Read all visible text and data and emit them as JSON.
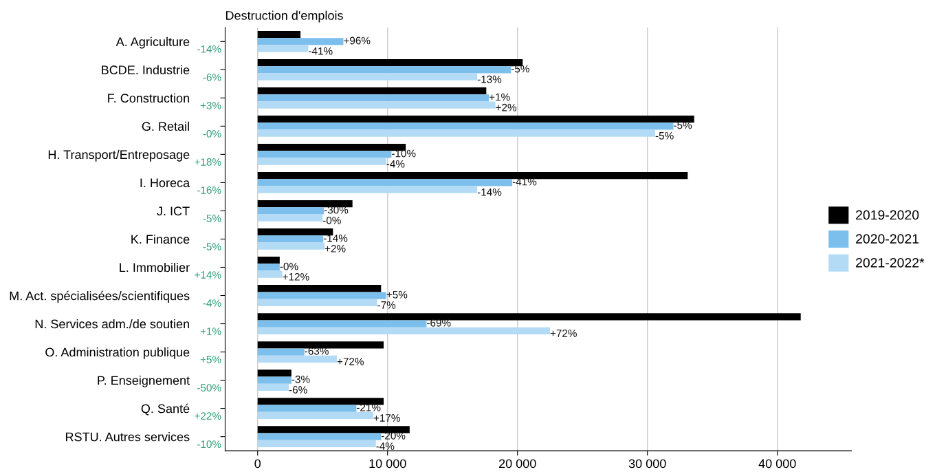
{
  "chart_data": {
    "type": "bar",
    "orientation": "horizontal",
    "title": "Destruction d'emplois",
    "categories": [
      "A. Agriculture",
      "BCDE. Industrie",
      "F. Construction",
      "G. Retail",
      "H. Transport/Entreposage",
      "I. Horeca",
      "J. ICT",
      "K. Finance",
      "L. Immobilier",
      "M. Act. spécialisées/scientifiques",
      "N. Services adm./de soutien",
      "O. Administration publique",
      "P. Enseignement",
      "Q. Santé",
      "RSTU. Autres services"
    ],
    "series": [
      {
        "name": "2019-2020",
        "color": "#000000",
        "values": [
          3300,
          20400,
          17600,
          33600,
          11400,
          33100,
          7300,
          5800,
          1700,
          9500,
          41800,
          9700,
          2600,
          9700,
          11700
        ]
      },
      {
        "name": "2020-2021",
        "color": "#7dbfec",
        "values": [
          6600,
          19500,
          17800,
          32000,
          10300,
          19600,
          5100,
          5050,
          1700,
          9900,
          13000,
          3600,
          2600,
          7600,
          9500
        ]
      },
      {
        "name": "2021-2022*",
        "color": "#b3dbf5",
        "values": [
          3900,
          16900,
          18300,
          30600,
          9900,
          16900,
          5000,
          5150,
          1900,
          9200,
          22500,
          6100,
          2400,
          8900,
          9100
        ]
      }
    ],
    "annotations": [
      "-14%",
      "-6%",
      "+3%",
      "-0%",
      "+18%",
      "-16%",
      "-5%",
      "-5%",
      "+14%",
      "-4%",
      "+1%",
      "+5%",
      "-50%",
      "+22%",
      "-10%",
      {
        "text": "+96%",
        "x": 6600,
        "y": "A. Agriculture"
      },
      {
        "text": "-41%",
        "x": 3900,
        "y": "A. Agriculture"
      },
      {
        "text": "-5%",
        "x": 19500,
        "y": "BCDE. Industrie"
      },
      {
        "text": "-13%",
        "x": 16900,
        "y": "BCDE. Industrie"
      },
      {
        "text": "+1%",
        "x": 17800,
        "y": "F. Construction"
      },
      {
        "text": "+2%",
        "x": 18300,
        "y": "F. Construction"
      },
      {
        "text": "-5%",
        "x": 32000,
        "y": "G. Retail"
      },
      {
        "text": "-5%",
        "x": 30600,
        "y": "G. Retail"
      },
      {
        "text": "-10%",
        "x": 10300,
        "y": "H. Transport/Entreposage"
      },
      {
        "text": "-4%",
        "x": 9900,
        "y": "H. Transport/Entreposage"
      },
      {
        "text": "-41%",
        "x": 19600,
        "y": "I. Horeca"
      },
      {
        "text": "-14%",
        "x": 16900,
        "y": "I. Horeca"
      },
      {
        "text": "-30%",
        "x": 5100,
        "y": "J. ICT"
      },
      {
        "text": "-0%",
        "x": 5000,
        "y": "J. ICT"
      },
      {
        "text": "-14%",
        "x": 5050,
        "y": "K. Finance"
      },
      {
        "text": "+2%",
        "x": 5150,
        "y": "K. Finance"
      },
      {
        "text": "-0%",
        "x": 1700,
        "y": "L. Immobilier"
      },
      {
        "text": "+12%",
        "x": 1900,
        "y": "L. Immobilier"
      },
      {
        "text": "+5%",
        "x": 9900,
        "y": "M. Act. spécialisées/scientifiques"
      },
      {
        "text": "-7%",
        "x": 9200,
        "y": "M. Act. spécialisées/scientifiques"
      },
      {
        "text": "-69%",
        "x": 13000,
        "y": "N. Services adm./de soutien"
      },
      {
        "text": "+72%",
        "x": 22500,
        "y": "N. Services adm./de soutien"
      },
      {
        "text": "-63%",
        "x": 3600,
        "y": "O. Administration publique"
      },
      {
        "text": "+72%",
        "x": 6100,
        "y": "O. Administration publique"
      },
      {
        "text": "-3%",
        "x": 2600,
        "y": "P. Enseignement"
      },
      {
        "text": "-6%",
        "x": 2400,
        "y": "P. Enseignement"
      },
      {
        "text": "-21%",
        "x": 7600,
        "y": "Q. Santé"
      },
      {
        "text": "+17%",
        "x": 8900,
        "y": "Q. Santé"
      },
      {
        "text": "-20%",
        "x": 9500,
        "y": "RSTU. Autres services"
      },
      {
        "text": "-4%",
        "x": 9100,
        "y": "RSTU. Autres services"
      }
    ],
    "xlim": [
      -2500,
      45700
    ],
    "xticks": [
      0,
      {
        "value": 10000,
        "label": "10 000"
      },
      {
        "value": 20000,
        "label": "20 000"
      },
      {
        "value": 30000,
        "label": "30 000"
      },
      {
        "value": 40000,
        "label": "40 000"
      }
    ],
    "grid": "x",
    "legend": "right"
  }
}
